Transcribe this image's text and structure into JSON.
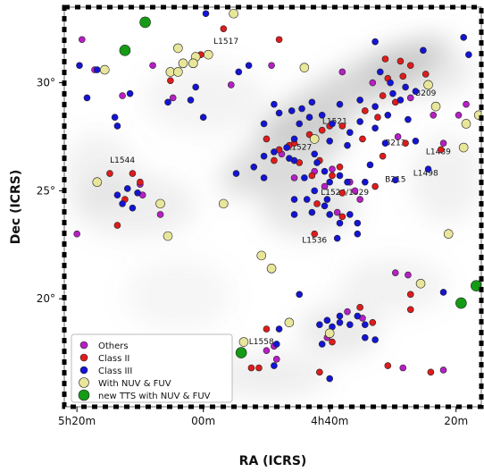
{
  "chart_data": {
    "type": "scatter",
    "xlabel": "RA (ICRS)",
    "ylabel": "Dec (ICRS)",
    "x_axis_note": "RA in degrees, decreasing to the right",
    "xlim": [
      80.5,
      64.0
    ],
    "ylim": [
      15.0,
      33.5
    ],
    "x_ticks": [
      {
        "value": 80,
        "label": "5h20m"
      },
      {
        "value": 75,
        "label": "00m"
      },
      {
        "value": 70,
        "label": "4h40m"
      },
      {
        "value": 65,
        "label": "20m"
      }
    ],
    "y_ticks": [
      {
        "value": 20,
        "label": "20°"
      },
      {
        "value": 25,
        "label": "25°"
      },
      {
        "value": 30,
        "label": "30°"
      }
    ],
    "legend_position": "lower-left",
    "background": "grayscale extinction map (cloud structure)",
    "region_labels": [
      {
        "text": "L1517",
        "ra": 74.1,
        "dec": 31.8
      },
      {
        "text": "B209",
        "ra": 66.2,
        "dec": 29.4
      },
      {
        "text": "L1521",
        "ra": 69.8,
        "dec": 28.1
      },
      {
        "text": "L1527",
        "ra": 71.2,
        "dec": 26.9
      },
      {
        "text": "B213",
        "ra": 67.4,
        "dec": 27.1
      },
      {
        "text": "L1489",
        "ra": 65.7,
        "dec": 26.7
      },
      {
        "text": "L1544",
        "ra": 78.2,
        "dec": 26.3
      },
      {
        "text": "L1498",
        "ra": 66.2,
        "dec": 25.7
      },
      {
        "text": "B215",
        "ra": 67.4,
        "dec": 25.4
      },
      {
        "text": "L1524/1529",
        "ra": 69.4,
        "dec": 24.8
      },
      {
        "text": "L1536",
        "ra": 70.6,
        "dec": 22.6
      },
      {
        "text": "L1558",
        "ra": 72.7,
        "dec": 17.9
      }
    ],
    "series": [
      {
        "name": "Others",
        "color": "#b61fc4",
        "marker_size": 3.5,
        "points": [
          [
            79.8,
            32.0
          ],
          [
            79.3,
            30.6
          ],
          [
            78.2,
            29.4
          ],
          [
            77.0,
            30.8
          ],
          [
            76.2,
            29.3
          ],
          [
            72.3,
            30.8
          ],
          [
            73.9,
            29.9
          ],
          [
            69.5,
            30.5
          ],
          [
            68.3,
            30.0
          ],
          [
            66.8,
            29.3
          ],
          [
            65.9,
            28.5
          ],
          [
            64.9,
            28.5
          ],
          [
            64.6,
            29.0
          ],
          [
            67.3,
            27.5
          ],
          [
            65.5,
            27.2
          ],
          [
            69.9,
            26.0
          ],
          [
            70.6,
            25.9
          ],
          [
            70.2,
            25.2
          ],
          [
            69.2,
            25.4
          ],
          [
            69.0,
            25.0
          ],
          [
            69.7,
            24.0
          ],
          [
            68.8,
            24.6
          ],
          [
            71.9,
            26.7
          ],
          [
            71.4,
            25.6
          ],
          [
            76.7,
            23.9
          ],
          [
            77.5,
            25.3
          ],
          [
            80.0,
            23.0
          ],
          [
            77.4,
            24.8
          ],
          [
            67.4,
            21.2
          ],
          [
            66.9,
            21.1
          ],
          [
            69.3,
            19.4
          ],
          [
            68.7,
            19.1
          ],
          [
            70.1,
            18.2
          ],
          [
            72.2,
            17.8
          ],
          [
            72.5,
            17.6
          ],
          [
            67.1,
            16.8
          ],
          [
            65.5,
            16.7
          ],
          [
            72.1,
            17.2
          ]
        ]
      },
      {
        "name": "Class II",
        "color": "#e01b1b",
        "marker_size": 3.5,
        "points": [
          [
            75.1,
            31.3
          ],
          [
            74.2,
            32.5
          ],
          [
            72.0,
            32.0
          ],
          [
            67.8,
            31.1
          ],
          [
            67.2,
            31.0
          ],
          [
            66.8,
            30.8
          ],
          [
            67.7,
            30.2
          ],
          [
            67.1,
            30.3
          ],
          [
            66.2,
            30.4
          ],
          [
            67.9,
            29.4
          ],
          [
            67.4,
            29.1
          ],
          [
            68.6,
            28.7
          ],
          [
            68.1,
            28.4
          ],
          [
            69.5,
            28.0
          ],
          [
            70.0,
            28.0
          ],
          [
            70.8,
            27.6
          ],
          [
            71.6,
            27.1
          ],
          [
            72.0,
            26.9
          ],
          [
            72.2,
            26.4
          ],
          [
            71.2,
            26.3
          ],
          [
            70.3,
            27.8
          ],
          [
            70.4,
            26.4
          ],
          [
            69.6,
            26.1
          ],
          [
            69.9,
            25.7
          ],
          [
            70.7,
            25.7
          ],
          [
            70.5,
            24.4
          ],
          [
            69.5,
            24.9
          ],
          [
            67.9,
            26.6
          ],
          [
            67.0,
            27.2
          ],
          [
            65.6,
            26.9
          ],
          [
            68.7,
            27.4
          ],
          [
            68.2,
            25.2
          ],
          [
            77.8,
            25.8
          ],
          [
            77.5,
            25.4
          ],
          [
            78.7,
            25.8
          ],
          [
            78.1,
            24.6
          ],
          [
            78.4,
            23.4
          ],
          [
            70.6,
            23.0
          ],
          [
            69.5,
            23.8
          ],
          [
            66.8,
            20.2
          ],
          [
            66.8,
            19.5
          ],
          [
            68.8,
            19.6
          ],
          [
            68.3,
            18.9
          ],
          [
            69.9,
            18.0
          ],
          [
            72.8,
            16.8
          ],
          [
            73.1,
            16.8
          ],
          [
            70.4,
            16.6
          ],
          [
            67.7,
            16.9
          ],
          [
            66.0,
            16.6
          ],
          [
            72.5,
            18.6
          ],
          [
            76.3,
            30.1
          ],
          [
            72.5,
            27.4
          ],
          [
            71.4,
            27.2
          ]
        ]
      },
      {
        "name": "Class III",
        "color": "#1414d6",
        "marker_size": 3.5,
        "points": [
          [
            79.9,
            30.8
          ],
          [
            79.6,
            29.3
          ],
          [
            79.2,
            30.6
          ],
          [
            78.5,
            28.4
          ],
          [
            78.4,
            28.0
          ],
          [
            75.3,
            29.8
          ],
          [
            75.0,
            28.4
          ],
          [
            76.4,
            29.1
          ],
          [
            77.9,
            29.5
          ],
          [
            75.5,
            29.2
          ],
          [
            73.6,
            30.5
          ],
          [
            73.2,
            30.8
          ],
          [
            72.6,
            28.1
          ],
          [
            72.0,
            28.6
          ],
          [
            68.2,
            31.9
          ],
          [
            66.3,
            31.5
          ],
          [
            64.7,
            32.1
          ],
          [
            64.5,
            31.3
          ],
          [
            68.0,
            30.5
          ],
          [
            67.6,
            30.0
          ],
          [
            67.0,
            29.8
          ],
          [
            66.6,
            29.6
          ],
          [
            67.5,
            29.5
          ],
          [
            67.2,
            29.2
          ],
          [
            68.2,
            28.9
          ],
          [
            68.8,
            28.2
          ],
          [
            69.2,
            27.7
          ],
          [
            69.9,
            28.1
          ],
          [
            70.3,
            28.5
          ],
          [
            70.8,
            28.4
          ],
          [
            71.2,
            28.1
          ],
          [
            71.4,
            27.4
          ],
          [
            71.7,
            27.0
          ],
          [
            72.2,
            26.8
          ],
          [
            72.6,
            26.6
          ],
          [
            71.4,
            26.4
          ],
          [
            71.0,
            25.6
          ],
          [
            70.6,
            26.7
          ],
          [
            70.2,
            25.9
          ],
          [
            70.0,
            25.4
          ],
          [
            69.6,
            25.7
          ],
          [
            69.3,
            25.4
          ],
          [
            70.6,
            25.0
          ],
          [
            70.9,
            24.6
          ],
          [
            71.4,
            24.6
          ],
          [
            70.7,
            24.0
          ],
          [
            70.2,
            24.3
          ],
          [
            70.0,
            23.9
          ],
          [
            69.6,
            23.5
          ],
          [
            69.2,
            23.9
          ],
          [
            68.9,
            23.5
          ],
          [
            71.4,
            23.9
          ],
          [
            73.0,
            26.1
          ],
          [
            72.6,
            25.6
          ],
          [
            69.3,
            27.1
          ],
          [
            68.4,
            26.2
          ],
          [
            68.6,
            25.4
          ],
          [
            70.5,
            26.3
          ],
          [
            70.0,
            27.3
          ],
          [
            68.2,
            27.9
          ],
          [
            67.7,
            28.5
          ],
          [
            66.9,
            28.3
          ],
          [
            68.8,
            29.2
          ],
          [
            69.6,
            29.0
          ],
          [
            70.7,
            29.1
          ],
          [
            71.5,
            28.7
          ],
          [
            71.6,
            26.5
          ],
          [
            70.1,
            24.6
          ],
          [
            78.4,
            24.8
          ],
          [
            78.2,
            24.4
          ],
          [
            77.6,
            24.9
          ],
          [
            78.0,
            25.1
          ],
          [
            77.8,
            24.2
          ],
          [
            70.1,
            19.0
          ],
          [
            69.6,
            18.9
          ],
          [
            69.2,
            18.8
          ],
          [
            68.9,
            19.2
          ],
          [
            68.6,
            18.8
          ],
          [
            69.6,
            19.2
          ],
          [
            69.9,
            18.7
          ],
          [
            68.6,
            18.2
          ],
          [
            70.3,
            17.9
          ],
          [
            71.2,
            20.2
          ],
          [
            70.4,
            18.8
          ],
          [
            68.2,
            18.1
          ],
          [
            65.5,
            20.3
          ],
          [
            70.0,
            16.3
          ],
          [
            72.1,
            17.9
          ],
          [
            72.0,
            18.6
          ],
          [
            72.2,
            16.9
          ],
          [
            67.4,
            25.5
          ],
          [
            66.1,
            26.0
          ],
          [
            66.6,
            27.3
          ],
          [
            67.8,
            27.2
          ],
          [
            68.9,
            23.0
          ],
          [
            69.7,
            22.8
          ],
          [
            71.1,
            28.8
          ],
          [
            73.7,
            25.8
          ],
          [
            72.2,
            29.0
          ],
          [
            74.9,
            33.2
          ]
        ]
      },
      {
        "name": "With NUV & FUV",
        "color": "#e8e69a",
        "marker_size": 5,
        "points": [
          [
            73.8,
            33.2
          ],
          [
            76.0,
            31.6
          ],
          [
            75.3,
            31.2
          ],
          [
            75.4,
            30.9
          ],
          [
            76.3,
            30.5
          ],
          [
            76.0,
            30.5
          ],
          [
            74.8,
            31.3
          ],
          [
            78.9,
            30.6
          ],
          [
            75.8,
            30.9
          ],
          [
            71.0,
            30.7
          ],
          [
            70.6,
            27.4
          ],
          [
            66.1,
            29.9
          ],
          [
            65.8,
            28.9
          ],
          [
            64.6,
            28.1
          ],
          [
            64.1,
            28.5
          ],
          [
            79.2,
            25.4
          ],
          [
            74.2,
            24.4
          ],
          [
            76.4,
            22.9
          ],
          [
            72.7,
            22.0
          ],
          [
            72.3,
            21.4
          ],
          [
            71.6,
            18.9
          ],
          [
            73.4,
            18.0
          ],
          [
            70.0,
            18.4
          ],
          [
            66.4,
            20.7
          ],
          [
            65.3,
            23.0
          ],
          [
            64.7,
            27.0
          ],
          [
            76.7,
            24.4
          ]
        ]
      },
      {
        "name": "new TTS with NUV & FUV",
        "color": "#159b15",
        "marker_size": 6,
        "points": [
          [
            77.3,
            32.8
          ],
          [
            78.1,
            31.5
          ],
          [
            73.5,
            17.5
          ],
          [
            64.2,
            20.6
          ],
          [
            64.8,
            19.8
          ]
        ]
      }
    ]
  }
}
